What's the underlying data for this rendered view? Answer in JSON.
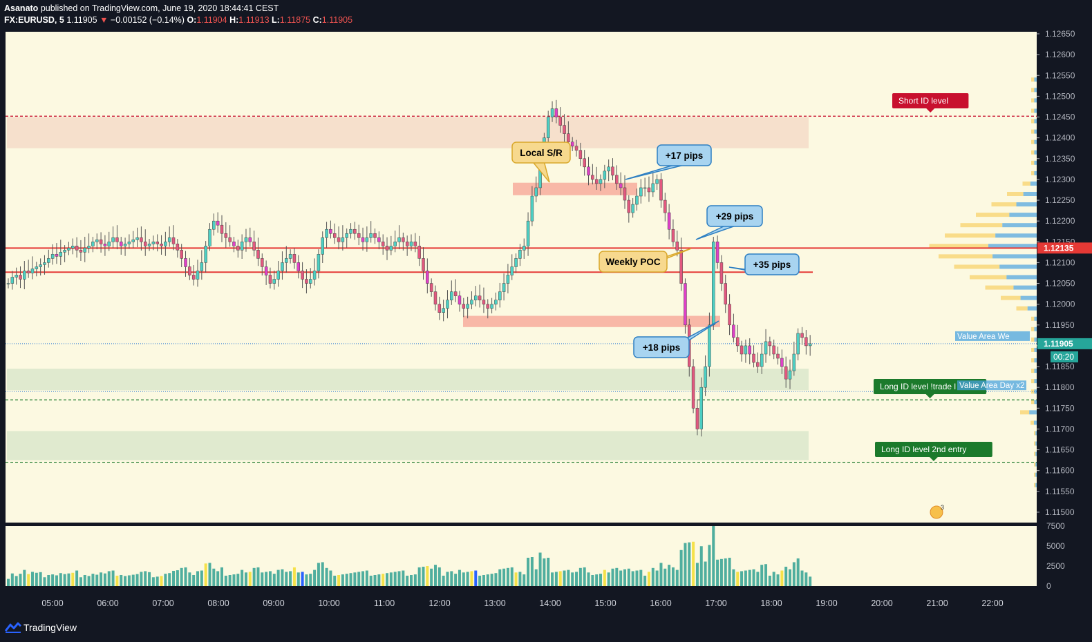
{
  "header": {
    "author": "Asanato",
    "published": "published on TradingView.com, June 19, 2020 18:44:41 CEST",
    "symbol": "FX:EURUSD, 5",
    "last": "1.11905",
    "change_arrow": "▼",
    "change": "−0.00152 (−0.14%)",
    "o_label": "O:",
    "o_value": "1.11904",
    "h_label": "H:",
    "h_value": "1.11913",
    "l_label": "L:",
    "l_value": "1.11875",
    "c_label": "C:",
    "c_value": "1.11905"
  },
  "footer": {
    "brand": "TradingView",
    "logo_icon": "tradingview-logo-icon"
  },
  "colors": {
    "background": "#fcf9e1",
    "up": "#4dd0c4",
    "down": "#e2587f",
    "magenta": "#e040c8",
    "red_line": "#e53935",
    "green_level": "#1b7a2b",
    "short_level": "#c8102e",
    "volume_teal": "#4fae9e",
    "volume_yellow": "#f5e14a",
    "volume_blue": "#2962ff",
    "profile_blue": "#4aa3df",
    "profile_yellow": "#f5c542"
  },
  "chart_data": {
    "type": "candlestick",
    "price_axis": {
      "ylim": [
        1.11475,
        1.12655
      ],
      "ticks": [
        "1.12650",
        "1.12600",
        "1.12550",
        "1.12500",
        "1.12450",
        "1.12400",
        "1.12350",
        "1.12300",
        "1.12250",
        "1.12200",
        "1.12150",
        "1.12100",
        "1.12050",
        "1.12000",
        "1.11950",
        "1.11900",
        "1.11850",
        "1.11800",
        "1.11750",
        "1.11700",
        "1.11650",
        "1.11600",
        "1.11550",
        "1.11500"
      ],
      "last_price_label": "1.11905",
      "countdown_label": "00:20",
      "poc_label": "1.12135"
    },
    "time_axis": {
      "ticks": [
        "05:00",
        "06:00",
        "07:00",
        "08:00",
        "09:00",
        "10:00",
        "11:00",
        "12:00",
        "13:00",
        "14:00",
        "15:00",
        "16:00",
        "17:00",
        "18:00",
        "19:00",
        "20:00",
        "21:00",
        "22:00"
      ]
    },
    "volume_axis": {
      "ticks": [
        "7500",
        "5000",
        "2500",
        "0"
      ],
      "ylim": [
        0,
        7500
      ]
    },
    "close_series": [
      1.1205,
      1.12065,
      1.1207,
      1.1206,
      1.1208,
      1.12075,
      1.12085,
      1.1209,
      1.12095,
      1.121,
      1.1211,
      1.1212,
      1.12115,
      1.12125,
      1.1213,
      1.12135,
      1.1214,
      1.1213,
      1.12125,
      1.12135,
      1.1214,
      1.1215,
      1.12155,
      1.12145,
      1.1214,
      1.1215,
      1.1216,
      1.1215,
      1.1214,
      1.12145,
      1.1215,
      1.12155,
      1.1216,
      1.1215,
      1.1214,
      1.12145,
      1.1215,
      1.12145,
      1.1214,
      1.1215,
      1.1216,
      1.12145,
      1.1213,
      1.1211,
      1.1209,
      1.1207,
      1.1206,
      1.1208,
      1.121,
      1.1214,
      1.1218,
      1.122,
      1.1219,
      1.1217,
      1.1216,
      1.1215,
      1.1214,
      1.1213,
      1.1215,
      1.1216,
      1.1215,
      1.1213,
      1.1211,
      1.1209,
      1.1207,
      1.1205,
      1.1206,
      1.1208,
      1.121,
      1.1211,
      1.1212,
      1.121,
      1.1208,
      1.1206,
      1.1205,
      1.1206,
      1.1208,
      1.1212,
      1.1216,
      1.1218,
      1.1217,
      1.1216,
      1.1215,
      1.1216,
      1.1217,
      1.1218,
      1.1217,
      1.1216,
      1.1215,
      1.1216,
      1.1217,
      1.1216,
      1.1215,
      1.1214,
      1.1213,
      1.1214,
      1.1215,
      1.1216,
      1.1215,
      1.1214,
      1.1215,
      1.1214,
      1.1211,
      1.1208,
      1.1205,
      1.1203,
      1.12,
      1.1198,
      1.1199,
      1.1201,
      1.1203,
      1.1202,
      1.12,
      1.1199,
      1.12,
      1.1201,
      1.1202,
      1.1201,
      1.12,
      1.1199,
      1.12,
      1.1201,
      1.1203,
      1.1205,
      1.1207,
      1.1209,
      1.1211,
      1.1213,
      1.1214,
      1.122,
      1.1226,
      1.1228,
      1.1235,
      1.124,
      1.1245,
      1.1247,
      1.1245,
      1.1243,
      1.1241,
      1.1239,
      1.1238,
      1.1237,
      1.1235,
      1.1233,
      1.1231,
      1.123,
      1.1229,
      1.123,
      1.1232,
      1.1233,
      1.1231,
      1.1229,
      1.1228,
      1.1225,
      1.1222,
      1.1224,
      1.1226,
      1.1228,
      1.1228,
      1.1227,
      1.1229,
      1.123,
      1.1225,
      1.1222,
      1.1218,
      1.1215,
      1.1213,
      1.1205,
      1.1195,
      1.1185,
      1.1175,
      1.117,
      1.118,
      1.1185,
      1.1195,
      1.1215,
      1.121,
      1.1205,
      1.12,
      1.1195,
      1.1192,
      1.119,
      1.1188,
      1.119,
      1.1188,
      1.1186,
      1.1185,
      1.1188,
      1.1191,
      1.119,
      1.1188,
      1.1187,
      1.1185,
      1.1182,
      1.1184,
      1.1188,
      1.1193,
      1.1192,
      1.119,
      1.11905
    ],
    "horizontal_levels": [
      {
        "label": "Short ID level",
        "price": 1.12452
      },
      {
        "price": 1.12135
      },
      {
        "price": 1.12077
      },
      {
        "label": "Long ID level !trade l",
        "price": 1.1177
      },
      {
        "label": "Long ID level 2nd entry",
        "price": 1.1162
      }
    ],
    "annotations": [
      {
        "text": "Local S/R"
      },
      {
        "text": "+17 pips"
      },
      {
        "text": "+29 pips"
      },
      {
        "text": "Weekly POC"
      },
      {
        "text": "+35 pips"
      },
      {
        "text": "+18 pips"
      }
    ],
    "value_area_labels": [
      "Value Area We",
      "Value Area Day x2"
    ],
    "volume_profile_hint": "3"
  }
}
